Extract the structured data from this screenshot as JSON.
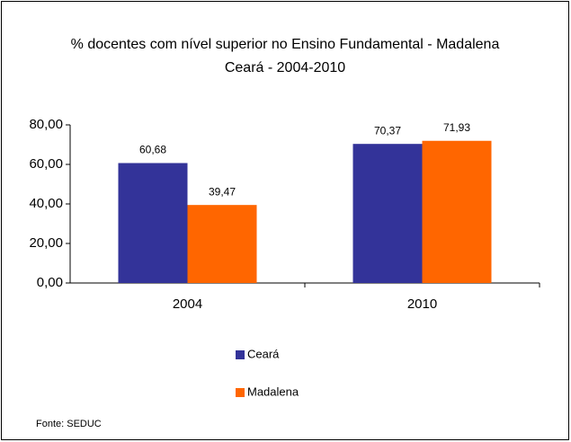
{
  "chart_data": {
    "type": "bar",
    "title": "% docentes com nível superior no Ensino Fundamental - Madalena",
    "subtitle": "Ceará - 2004-2010",
    "categories": [
      "2004",
      "2010"
    ],
    "series": [
      {
        "name": "Ceará",
        "color": "#333399",
        "values": [
          60.68,
          70.37
        ],
        "value_labels": [
          "60,68",
          "70,37"
        ]
      },
      {
        "name": "Madalena",
        "color": "#ff6600",
        "values": [
          39.47,
          71.93
        ],
        "value_labels": [
          "39,47",
          "71,93"
        ]
      }
    ],
    "ylim": [
      0,
      80
    ],
    "yticks": [
      {
        "value": 0,
        "label": "0,00"
      },
      {
        "value": 20,
        "label": "20,00"
      },
      {
        "value": 40,
        "label": "40,00"
      },
      {
        "value": 60,
        "label": "60,00"
      },
      {
        "value": 80,
        "label": "80,00"
      }
    ],
    "grid": false,
    "legend": "bottom",
    "source": "Fonte: SEDUC"
  }
}
